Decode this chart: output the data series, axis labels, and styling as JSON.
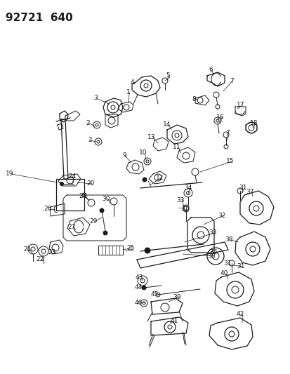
{
  "title": "92721  640",
  "title_fontsize": 11,
  "title_fontweight": "bold",
  "bg_color": "#ffffff",
  "line_color": "#1a1a1a",
  "label_fontsize": 6.5,
  "fig_width": 4.14,
  "fig_height": 5.33,
  "dpi": 100,
  "labels": [
    [
      14,
      248,
      "19"
    ],
    [
      130,
      263,
      "20"
    ],
    [
      100,
      253,
      "24"
    ],
    [
      40,
      355,
      "21"
    ],
    [
      60,
      365,
      "22"
    ],
    [
      78,
      358,
      "23"
    ],
    [
      72,
      298,
      "26"
    ],
    [
      117,
      281,
      "28"
    ],
    [
      130,
      314,
      "29"
    ],
    [
      148,
      284,
      "30"
    ],
    [
      101,
      320,
      "27"
    ],
    [
      175,
      353,
      "25"
    ],
    [
      138,
      140,
      "3"
    ],
    [
      178,
      133,
      "1"
    ],
    [
      128,
      175,
      "2"
    ],
    [
      131,
      200,
      "2"
    ],
    [
      235,
      108,
      "5"
    ],
    [
      192,
      118,
      "4"
    ],
    [
      295,
      102,
      "6"
    ],
    [
      325,
      117,
      "7"
    ],
    [
      275,
      142,
      "8"
    ],
    [
      335,
      152,
      "17"
    ],
    [
      355,
      178,
      "18"
    ],
    [
      308,
      168,
      "16"
    ],
    [
      320,
      192,
      "7"
    ],
    [
      180,
      222,
      "9"
    ],
    [
      204,
      218,
      "10"
    ],
    [
      216,
      196,
      "13"
    ],
    [
      238,
      180,
      "14"
    ],
    [
      252,
      210,
      "11"
    ],
    [
      318,
      232,
      "15"
    ],
    [
      227,
      253,
      "12"
    ],
    [
      264,
      270,
      "34"
    ],
    [
      255,
      285,
      "33"
    ],
    [
      259,
      296,
      "31"
    ],
    [
      316,
      308,
      "32"
    ],
    [
      347,
      276,
      "37"
    ],
    [
      302,
      332,
      "33"
    ],
    [
      323,
      342,
      "38"
    ],
    [
      303,
      358,
      "36"
    ],
    [
      338,
      270,
      "31"
    ],
    [
      316,
      378,
      "31"
    ],
    [
      297,
      363,
      "35"
    ],
    [
      197,
      397,
      "43"
    ],
    [
      198,
      409,
      "44"
    ],
    [
      220,
      420,
      "45"
    ],
    [
      198,
      432,
      "46"
    ],
    [
      317,
      392,
      "40"
    ],
    [
      337,
      382,
      "31"
    ],
    [
      248,
      425,
      "39"
    ],
    [
      244,
      458,
      "41"
    ],
    [
      335,
      450,
      "42"
    ]
  ]
}
